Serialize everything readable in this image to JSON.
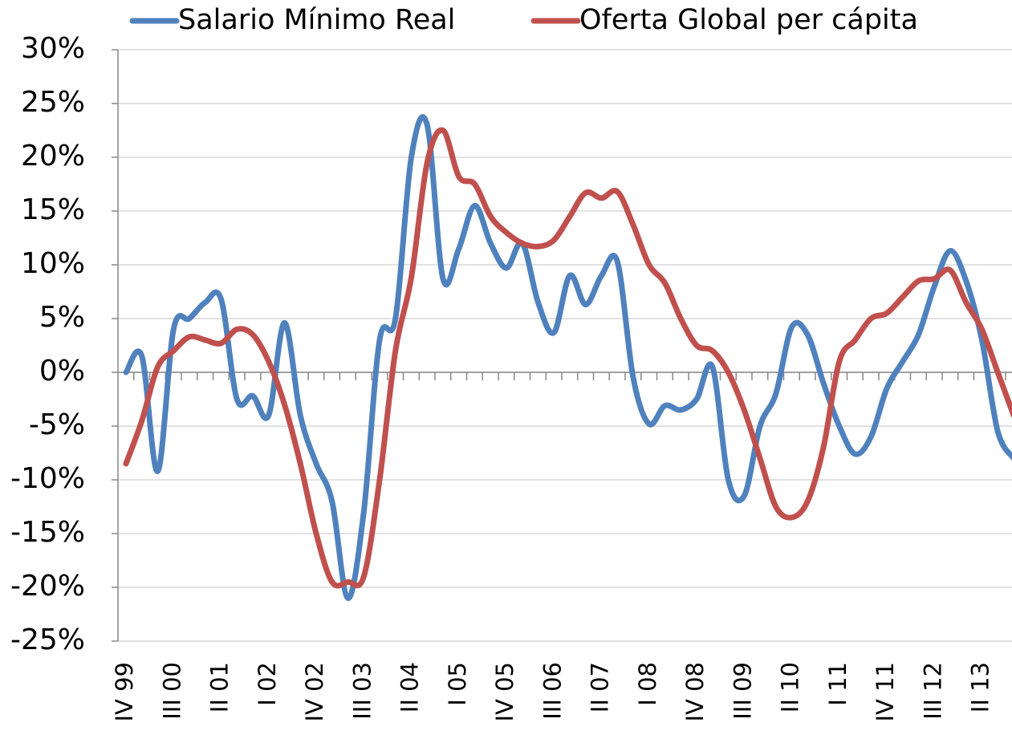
{
  "chart_data": {
    "type": "line",
    "categories": [
      "IV 99",
      null,
      null,
      "III 00",
      null,
      null,
      "II 01",
      null,
      null,
      "I 02",
      null,
      null,
      "IV 02",
      null,
      null,
      "III 03",
      null,
      null,
      "II 04",
      null,
      null,
      "I 05",
      null,
      null,
      "IV 05",
      null,
      null,
      "III 06",
      null,
      null,
      "II 07",
      null,
      null,
      "I 08",
      null,
      null,
      "IV 08",
      null,
      null,
      "III 09",
      null,
      null,
      "II 10",
      null,
      null,
      "I 11",
      null,
      null,
      "IV 11",
      null,
      null,
      "III 12",
      null,
      null,
      "II 13",
      null,
      null
    ],
    "series": [
      {
        "name": "Salario Mínimo Real",
        "color": "#4f81bd",
        "values": [
          0,
          1.5,
          -9.2,
          4,
          5,
          6.5,
          6.8,
          -2.5,
          -2.2,
          -4,
          4.6,
          -4,
          -8.5,
          -12,
          -21,
          -13,
          3,
          5,
          20,
          23,
          8.7,
          11.5,
          15.5,
          12,
          9.7,
          12,
          6.5,
          3.7,
          9,
          6.3,
          9,
          10.3,
          -0.5,
          -4.8,
          -3.1,
          -3.5,
          -2.5,
          0.5,
          -10,
          -11.5,
          -5,
          -2,
          4.2,
          3.5,
          -1,
          -5,
          -7.6,
          -6,
          -1.5,
          1,
          3.5,
          8,
          11.3,
          8.5,
          3,
          -5.5,
          -8
        ]
      },
      {
        "name": "Oferta Global per cápita",
        "color": "#c0504d",
        "values": [
          -8.5,
          -4.5,
          0.5,
          2,
          3.3,
          3,
          2.7,
          4,
          3.5,
          1,
          -3,
          -8.5,
          -15,
          -19.5,
          -19.5,
          -19,
          -10,
          2,
          8.8,
          19.5,
          22.5,
          18.2,
          17.5,
          14.5,
          13,
          12,
          11.7,
          12.3,
          14.5,
          16.7,
          16.2,
          16.8,
          13.7,
          10,
          8.3,
          5,
          2.5,
          2,
          0,
          -3.5,
          -8,
          -12.5,
          -13.5,
          -12,
          -7,
          1,
          3,
          5,
          5.5,
          7,
          8.5,
          8.7,
          9.5,
          6.5,
          4,
          0,
          -4
        ]
      }
    ],
    "ylim": [
      -25,
      30
    ],
    "yticks": [
      {
        "value": -25,
        "label": "-25%"
      },
      {
        "value": -20,
        "label": "-20%"
      },
      {
        "value": -15,
        "label": "-15%"
      },
      {
        "value": -10,
        "label": "-10%"
      },
      {
        "value": -5,
        "label": "-5%"
      },
      {
        "value": 0,
        "label": "0%"
      },
      {
        "value": 5,
        "label": "5%"
      },
      {
        "value": 10,
        "label": "10%"
      },
      {
        "value": 15,
        "label": "15%"
      },
      {
        "value": 20,
        "label": "20%"
      },
      {
        "value": 25,
        "label": "25%"
      },
      {
        "value": 30,
        "label": "30%"
      }
    ],
    "grid": true,
    "legend": "top"
  }
}
